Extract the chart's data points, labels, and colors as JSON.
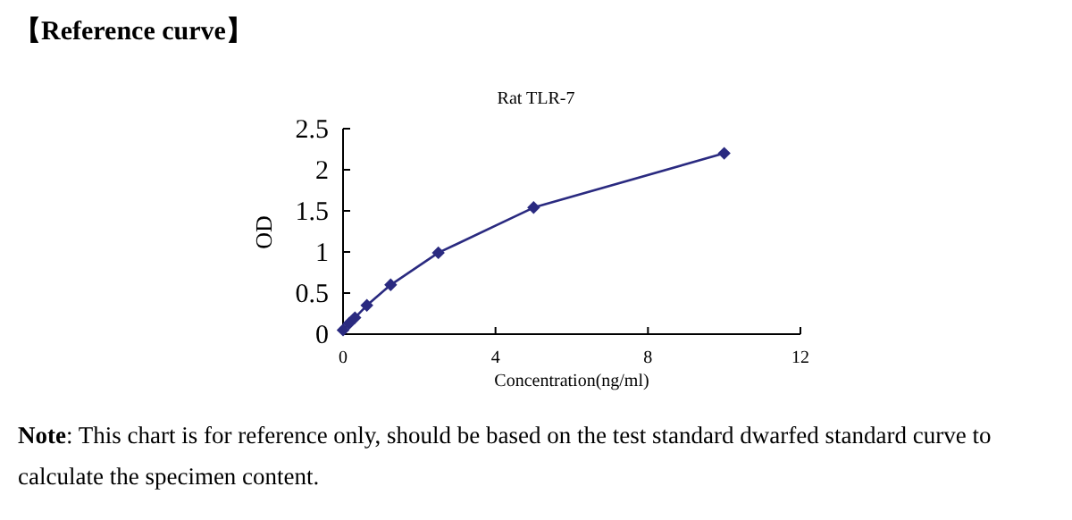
{
  "chart_data": {
    "type": "line",
    "title": "Rat TLR-7",
    "xlabel": "Concentration(ng/ml)",
    "ylabel": "OD",
    "annotations": [
      "【Reference curve】",
      "Note: This chart is for reference only, should be based on the test standard dwarfed standard curve to calculate the specimen content."
    ],
    "x": [
      0,
      0.156,
      0.3125,
      0.625,
      1.25,
      2.5,
      5,
      10
    ],
    "series": [
      {
        "color": "#2a2a80",
        "values": [
          0.05,
          0.13,
          0.2,
          0.35,
          0.6,
          0.99,
          1.54,
          2.2
        ]
      }
    ],
    "xlim": [
      0,
      12
    ],
    "xticks": [
      0,
      4,
      8,
      12
    ],
    "ylim": [
      0,
      2.5
    ],
    "yticks": [
      0,
      {
        "value": 0.5,
        "label": "0.5"
      },
      1,
      {
        "value": 1.5,
        "label": "1.5"
      },
      2,
      {
        "value": 2.5,
        "label": "2.5"
      }
    ],
    "marker": "diamond",
    "line_style": "solid"
  }
}
